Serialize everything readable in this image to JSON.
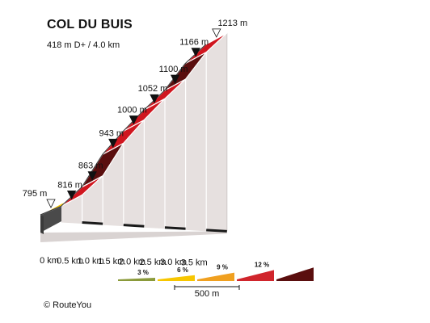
{
  "chart_data": {
    "type": "area",
    "title": "COL DU BUIS",
    "subtitle": "418 m D+ / 4.0 km",
    "x_unit": "km",
    "x_tick_labels": [
      "0 km",
      "0.5 km",
      "1.0 km",
      "1.5 km",
      "2.0 km",
      "2.5 km",
      "3.0 km",
      "3.5 km"
    ],
    "points": [
      {
        "km": 0.0,
        "elev": 795,
        "label": "795 m"
      },
      {
        "km": 0.5,
        "elev": 816,
        "label": "816 m"
      },
      {
        "km": 1.0,
        "elev": 863,
        "label": "863 m"
      },
      {
        "km": 1.5,
        "elev": 943,
        "label": "943 m"
      },
      {
        "km": 2.0,
        "elev": 1000,
        "label": "1000 m"
      },
      {
        "km": 2.5,
        "elev": 1052,
        "label": "1052 m"
      },
      {
        "km": 3.0,
        "elev": 1100,
        "label": "1100 m"
      },
      {
        "km": 3.5,
        "elev": 1166,
        "label": "1166 m"
      },
      {
        "km": 4.0,
        "elev": 1213,
        "label": "1213 m"
      }
    ],
    "segment_colors": [
      "#f7c600",
      "#d0161f",
      "#5a0e0e",
      "#d0161f",
      "#d0161f",
      "#d0161f",
      "#5a0e0e",
      "#d0161f"
    ],
    "legend": {
      "items": [
        {
          "label": "3 %",
          "color": "#8a9a3a"
        },
        {
          "label": "6 %",
          "color": "#f7c600"
        },
        {
          "label": "9 %",
          "color": "#f0a020"
        },
        {
          "label": "12 %",
          "color": "#d0252c"
        },
        {
          "label": "",
          "color": "#5a0e0e"
        }
      ],
      "scale_label": "500 m"
    }
  },
  "footer": {
    "credit": "©  RouteYou"
  }
}
